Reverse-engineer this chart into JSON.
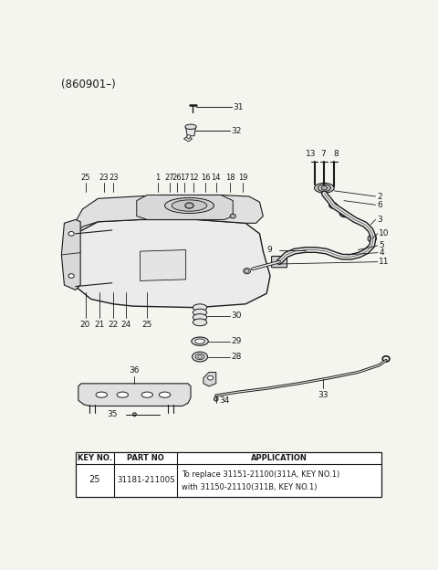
{
  "title": "(860901–)",
  "bg_color": "#f5f5f0",
  "line_color": "#1a1a1a",
  "table": {
    "headers": [
      "KEY NO.",
      "PART NO",
      "APPLICATION"
    ],
    "row_key": "25",
    "row_part": "31181-21100S",
    "row_app1": "To replace 31151-21100(311A, KEY NO.1)",
    "row_app2": "with 31150-21110(311B, KEY NO.1)"
  }
}
